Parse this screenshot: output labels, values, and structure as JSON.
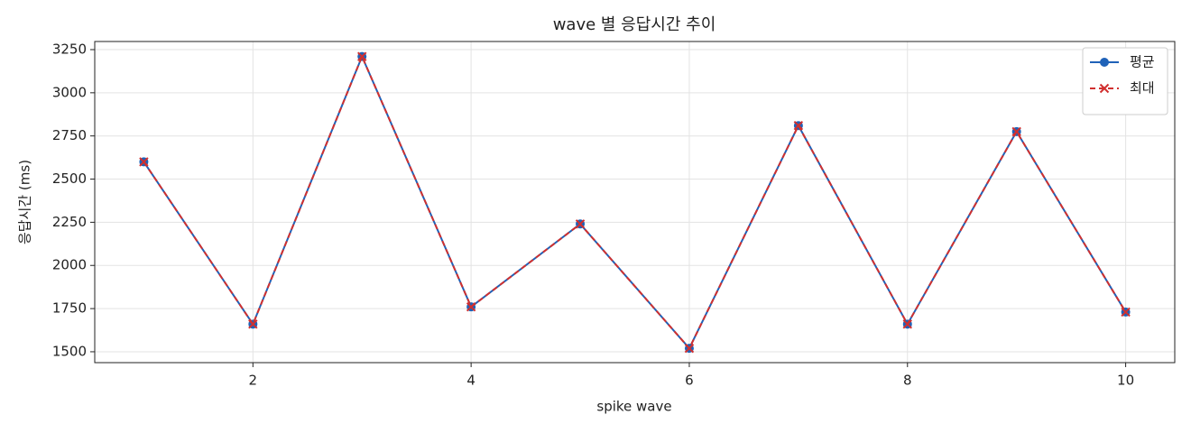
{
  "chart_data": {
    "type": "line",
    "title": "wave 별 응답시간 추이",
    "xlabel": "spike wave",
    "ylabel": "응답시간 (ms)",
    "x": [
      1,
      2,
      3,
      4,
      5,
      6,
      7,
      8,
      9,
      10
    ],
    "series": [
      {
        "name": "평균",
        "color": "#1f62b8",
        "linestyle": "solid",
        "marker": "o",
        "values": [
          2600,
          1660,
          3210,
          1760,
          2240,
          1520,
          2810,
          1660,
          2775,
          1730
        ]
      },
      {
        "name": "최대",
        "color": "#d1302f",
        "linestyle": "dashed",
        "marker": "x",
        "values": [
          2600,
          1660,
          3210,
          1760,
          2240,
          1520,
          2810,
          1660,
          2775,
          1730
        ]
      }
    ],
    "xlim": [
      0.55,
      10.45
    ],
    "ylim": [
      1437,
      3297
    ],
    "xticks": [
      2,
      4,
      6,
      8,
      10
    ],
    "yticks": [
      1500,
      1750,
      2000,
      2250,
      2500,
      2750,
      3000,
      3250
    ],
    "grid": true,
    "legend": "upper right"
  }
}
